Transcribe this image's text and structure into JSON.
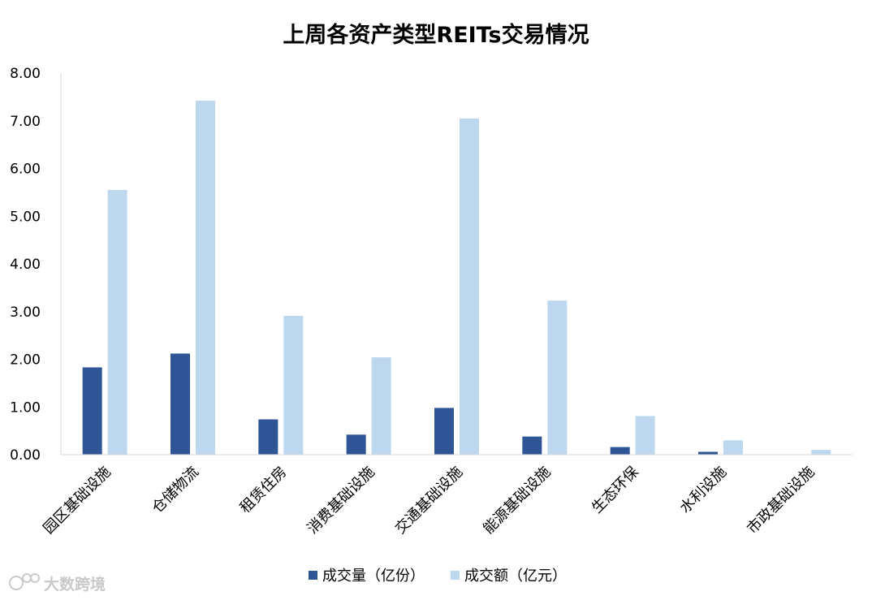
{
  "chart_data": {
    "type": "bar",
    "title": "上周各资产类型REITs交易情况",
    "categories": [
      "园区基础设施",
      "仓储物流",
      "租赁住房",
      "消费基础设施",
      "交通基础设施",
      "能源基础设施",
      "生态环保",
      "水利设施",
      "市政基础设施"
    ],
    "series": [
      {
        "name": "成交量（亿份）",
        "color": "#2f5597",
        "values": [
          1.83,
          2.12,
          0.74,
          0.42,
          0.98,
          0.38,
          0.16,
          0.06,
          0.0
        ]
      },
      {
        "name": "成交额（亿元）",
        "color": "#bdd7ee",
        "values": [
          5.55,
          7.42,
          2.91,
          2.04,
          7.05,
          3.23,
          0.81,
          0.3,
          0.1
        ]
      }
    ],
    "ylim": [
      0,
      8
    ],
    "yticks": [
      "0.00",
      "1.00",
      "2.00",
      "3.00",
      "4.00",
      "5.00",
      "6.00",
      "7.00",
      "8.00"
    ],
    "xlabel": "",
    "ylabel": "",
    "grid": false,
    "legend_position": "bottom"
  },
  "watermark": {
    "text": "大数跨境",
    "logo_icon": "dsk-logo-icon"
  }
}
